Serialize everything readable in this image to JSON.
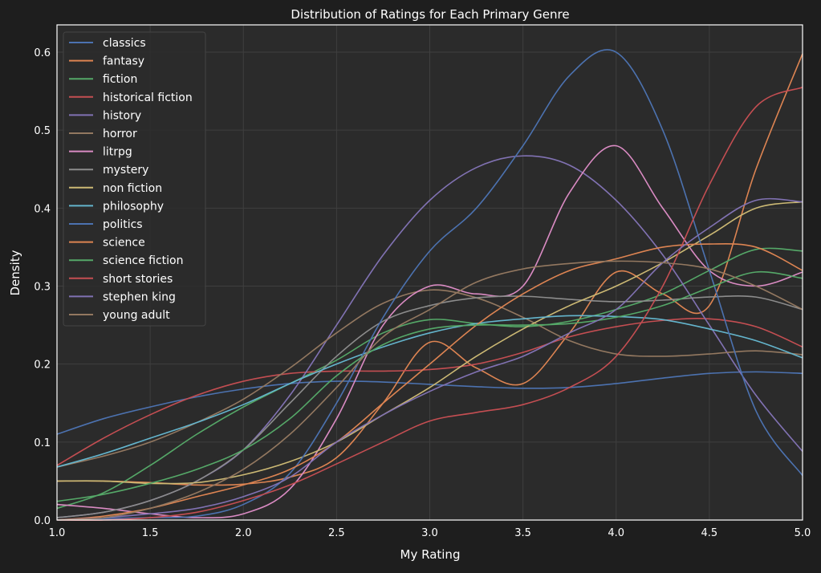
{
  "chart_data": {
    "type": "line",
    "title": "Distribution of Ratings for Each Primary Genre",
    "xlabel": "My Rating",
    "ylabel": "Density",
    "xlim": [
      1.0,
      5.0
    ],
    "ylim": [
      0.0,
      0.635
    ],
    "xticks": [
      "1.0",
      "1.5",
      "2.0",
      "2.5",
      "3.0",
      "3.5",
      "4.0",
      "4.5",
      "5.0"
    ],
    "yticks": [
      "0.0",
      "0.1",
      "0.2",
      "0.3",
      "0.4",
      "0.5",
      "0.6"
    ],
    "grid": true,
    "legend_position": "top-left",
    "x": [
      1,
      1.25,
      1.5,
      1.75,
      2,
      2.25,
      2.5,
      2.75,
      3,
      3.25,
      3.5,
      3.75,
      4,
      4.25,
      4.5,
      4.75,
      5
    ],
    "series": [
      {
        "name": "classics",
        "color": "#4c72b0",
        "values": [
          0.11,
          0.13,
          0.145,
          0.158,
          0.168,
          0.175,
          0.178,
          0.177,
          0.174,
          0.171,
          0.169,
          0.17,
          0.175,
          0.182,
          0.188,
          0.19,
          0.188
        ]
      },
      {
        "name": "fantasy",
        "color": "#dd8452",
        "values": [
          0.05,
          0.05,
          0.048,
          0.045,
          0.046,
          0.055,
          0.08,
          0.15,
          0.228,
          0.195,
          0.175,
          0.24,
          0.318,
          0.29,
          0.275,
          0.45,
          0.598
        ]
      },
      {
        "name": "fiction",
        "color": "#55a868",
        "values": [
          0.015,
          0.035,
          0.07,
          0.11,
          0.145,
          0.175,
          0.205,
          0.24,
          0.257,
          0.252,
          0.248,
          0.255,
          0.27,
          0.29,
          0.32,
          0.347,
          0.345
        ]
      },
      {
        "name": "historical fiction",
        "color": "#c44e52",
        "values": [
          0.07,
          0.105,
          0.135,
          0.16,
          0.178,
          0.188,
          0.191,
          0.191,
          0.193,
          0.2,
          0.215,
          0.235,
          0.248,
          0.256,
          0.258,
          0.248,
          0.222
        ]
      },
      {
        "name": "history",
        "color": "#8172b3",
        "values": [
          0.003,
          0.01,
          0.025,
          0.05,
          0.09,
          0.16,
          0.25,
          0.34,
          0.41,
          0.452,
          0.467,
          0.455,
          0.41,
          0.34,
          0.25,
          0.16,
          0.088
        ]
      },
      {
        "name": "horror",
        "color": "#937860",
        "values": [
          0.068,
          0.082,
          0.1,
          0.125,
          0.155,
          0.195,
          0.24,
          0.278,
          0.295,
          0.285,
          0.26,
          0.23,
          0.213,
          0.21,
          0.213,
          0.217,
          0.212
        ]
      },
      {
        "name": "litrpg",
        "color": "#da8bc3",
        "values": [
          0.02,
          0.015,
          0.008,
          0.003,
          0.008,
          0.04,
          0.13,
          0.25,
          0.3,
          0.29,
          0.3,
          0.42,
          0.48,
          0.4,
          0.32,
          0.3,
          0.318
        ]
      },
      {
        "name": "mystery",
        "color": "#8c8c8c",
        "values": [
          0.003,
          0.01,
          0.025,
          0.05,
          0.09,
          0.15,
          0.21,
          0.255,
          0.275,
          0.285,
          0.287,
          0.283,
          0.28,
          0.282,
          0.286,
          0.286,
          0.27
        ]
      },
      {
        "name": "non fiction",
        "color": "#ccb974",
        "values": [
          0.05,
          0.05,
          0.047,
          0.048,
          0.058,
          0.075,
          0.1,
          0.135,
          0.17,
          0.21,
          0.245,
          0.275,
          0.3,
          0.33,
          0.365,
          0.4,
          0.408
        ]
      },
      {
        "name": "philosophy",
        "color": "#64b5cd",
        "values": [
          0.068,
          0.085,
          0.105,
          0.125,
          0.148,
          0.175,
          0.2,
          0.222,
          0.24,
          0.252,
          0.258,
          0.262,
          0.261,
          0.257,
          0.245,
          0.23,
          0.208
        ]
      },
      {
        "name": "politics",
        "color": "#4c72b0",
        "values": [
          0.0,
          0.002,
          0.003,
          0.005,
          0.02,
          0.06,
          0.15,
          0.26,
          0.345,
          0.4,
          0.48,
          0.57,
          0.6,
          0.5,
          0.32,
          0.14,
          0.057
        ]
      },
      {
        "name": "science",
        "color": "#dd8452",
        "values": [
          0.0,
          0.005,
          0.015,
          0.03,
          0.045,
          0.065,
          0.1,
          0.15,
          0.2,
          0.25,
          0.29,
          0.32,
          0.335,
          0.35,
          0.354,
          0.35,
          0.32
        ]
      },
      {
        "name": "science fiction",
        "color": "#55a868",
        "values": [
          0.024,
          0.033,
          0.047,
          0.065,
          0.09,
          0.13,
          0.185,
          0.225,
          0.245,
          0.25,
          0.25,
          0.252,
          0.26,
          0.275,
          0.298,
          0.318,
          0.31
        ]
      },
      {
        "name": "short stories",
        "color": "#c44e52",
        "values": [
          0.0,
          0.0,
          0.003,
          0.01,
          0.025,
          0.045,
          0.072,
          0.1,
          0.127,
          0.138,
          0.148,
          0.17,
          0.21,
          0.3,
          0.43,
          0.53,
          0.555
        ]
      },
      {
        "name": "stephen king",
        "color": "#8172b3",
        "values": [
          0.0,
          0.003,
          0.008,
          0.015,
          0.03,
          0.055,
          0.1,
          0.135,
          0.165,
          0.19,
          0.21,
          0.24,
          0.27,
          0.33,
          0.375,
          0.41,
          0.408
        ]
      },
      {
        "name": "young adult",
        "color": "#937860",
        "values": [
          0.0,
          0.003,
          0.015,
          0.035,
          0.065,
          0.11,
          0.17,
          0.235,
          0.27,
          0.305,
          0.322,
          0.329,
          0.332,
          0.33,
          0.322,
          0.3,
          0.27
        ]
      }
    ]
  }
}
